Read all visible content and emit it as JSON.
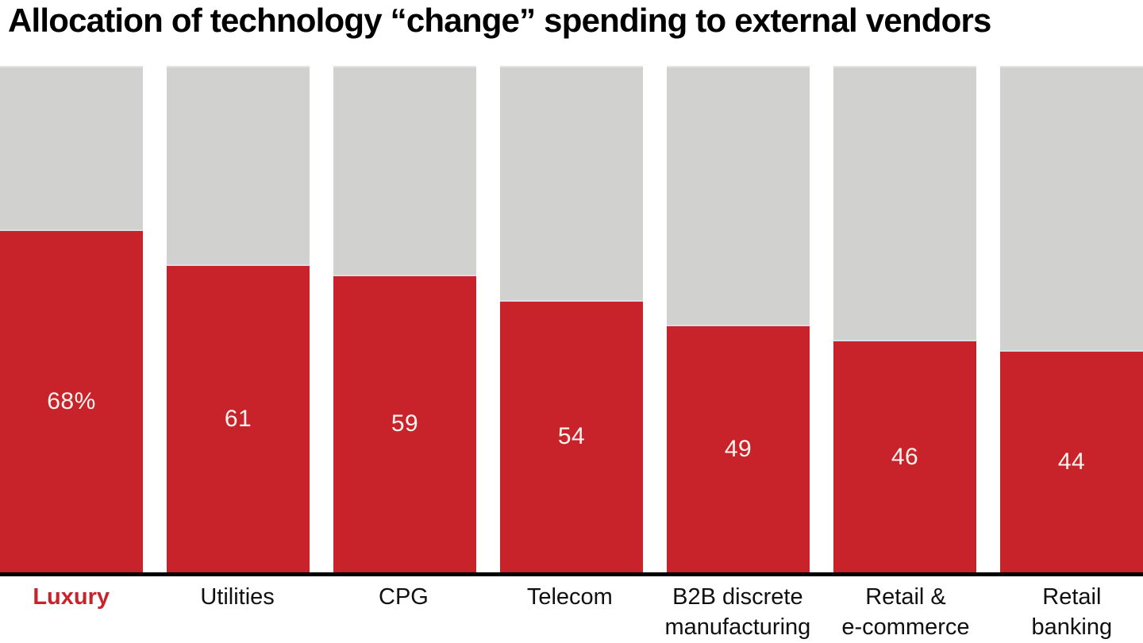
{
  "title": "Allocation of technology “change” spending to external vendors",
  "colors": {
    "bar_fill": "#C8232B",
    "bar_track": "#D1D1CF",
    "axis_line": "#000000",
    "value_label": "#FAF5EF",
    "category_label": "#101010",
    "highlighted_category_label": "#C8232B"
  },
  "chart_data": {
    "type": "bar",
    "subtype": "percentage-of-total-stacked-columns",
    "title": "Allocation of technology “change” spending to external vendors",
    "categories": [
      "Luxury",
      "Utilities",
      "CPG",
      "Telecom",
      "B2B discrete manufacturing",
      "Retail & e-commerce",
      "Retail banking"
    ],
    "category_label_lines": [
      [
        "Luxury"
      ],
      [
        "Utilities"
      ],
      [
        "CPG"
      ],
      [
        "Telecom"
      ],
      [
        "B2B discrete",
        "manufacturing"
      ],
      [
        "Retail &",
        "e-commerce"
      ],
      [
        "Retail",
        "banking"
      ]
    ],
    "values": [
      68,
      61,
      59,
      54,
      49,
      46,
      44
    ],
    "value_labels": [
      "68%",
      "61",
      "59",
      "54",
      "49",
      "46",
      "44"
    ],
    "remainder_values": [
      32,
      39,
      41,
      46,
      51,
      54,
      56
    ],
    "ylim": [
      0,
      100
    ],
    "unit": "percent",
    "highlighted_category": "Luxury",
    "legend": "none",
    "grid": false,
    "xlabel": "",
    "ylabel": ""
  }
}
